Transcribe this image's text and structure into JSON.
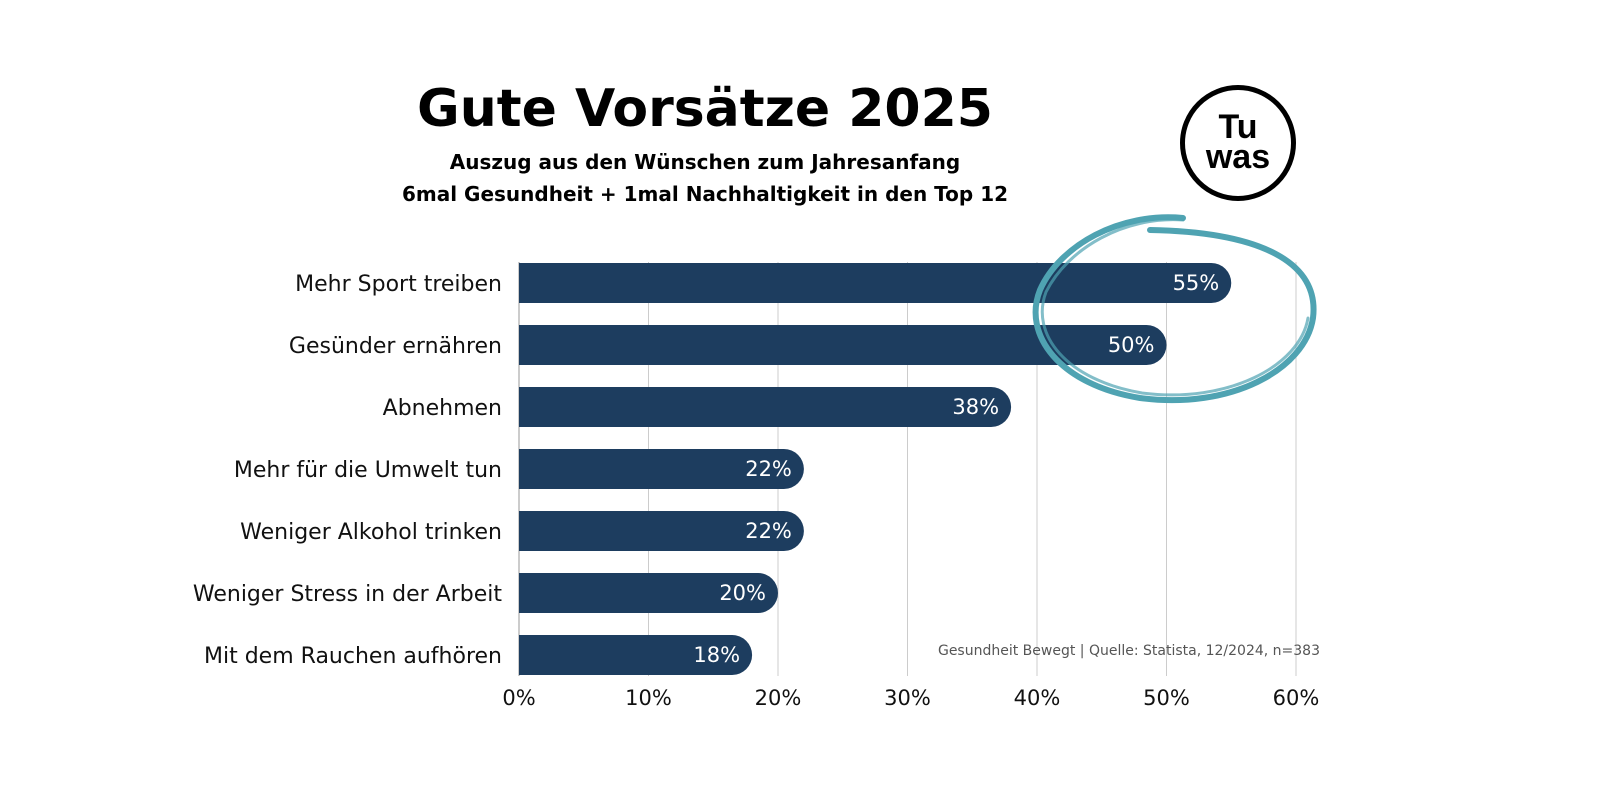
{
  "header": {
    "title": "Gute Vorsätze 2025",
    "subtitle_line1": "Auszug aus den Wünschen zum Jahresanfang",
    "subtitle_line2": "6mal Gesundheit + 1mal Nachhaltigkeit in den Top 12"
  },
  "logo": {
    "line1": "Tu",
    "line2": "was"
  },
  "source": "Gesundheit Bewegt  |  Quelle: Statista, 12/2024, n=383",
  "colors": {
    "bar": "#1d3d5f",
    "highlight_circle": "#4fa3b2",
    "grid": "#cccccc"
  },
  "chart_data": {
    "type": "bar",
    "orientation": "horizontal",
    "categories": [
      "Mehr Sport treiben",
      "Gesünder ernähren",
      "Abnehmen",
      "Mehr für die Umwelt tun",
      "Weniger Alkohol trinken",
      "Weniger Stress in der Arbeit",
      "Mit dem Rauchen aufhören"
    ],
    "values": [
      55,
      50,
      38,
      22,
      22,
      20,
      18
    ],
    "value_labels": [
      "55%",
      "50%",
      "38%",
      "22%",
      "22%",
      "20%",
      "18%"
    ],
    "xlim": [
      0,
      60
    ],
    "x_ticks": [
      0,
      10,
      20,
      30,
      40,
      50,
      60
    ],
    "x_tick_labels": [
      "0%",
      "10%",
      "20%",
      "30%",
      "40%",
      "50%",
      "60%"
    ],
    "grid": true,
    "annotation": "hand-drawn circle around the top two bars"
  }
}
